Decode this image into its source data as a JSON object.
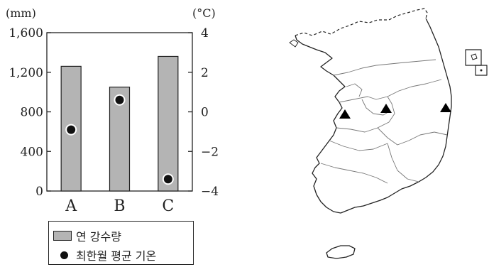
{
  "chart_data": {
    "type": "bar",
    "categories": [
      "A",
      "B",
      "C"
    ],
    "series": [
      {
        "name": "연 강수량",
        "kind": "bar",
        "axis": "left",
        "values": [
          1260,
          1050,
          1360
        ]
      },
      {
        "name": "최한월 평균 기온",
        "kind": "scatter",
        "axis": "right",
        "values": [
          -0.9,
          0.6,
          -3.4
        ]
      }
    ],
    "y_left": {
      "unit": "(mm)",
      "ylim": [
        0,
        1600
      ],
      "ticks": [
        0,
        400,
        800,
        1200,
        1600
      ],
      "tick_labels": [
        "0",
        "400",
        "800",
        "1,200",
        "1,600"
      ]
    },
    "y_right": {
      "unit": "(°C)",
      "ylim": [
        -4,
        4
      ],
      "ticks": [
        -4,
        -2,
        0,
        2,
        4
      ],
      "tick_labels": [
        "−4",
        "−2",
        "0",
        "2",
        "4"
      ]
    },
    "legend_position": "bottom",
    "bar_color": "#b4b4b4",
    "dot_color": "#111111"
  },
  "map": {
    "region": "South Korea",
    "markers": [
      {
        "symbol": "triangle",
        "location": "west coast"
      },
      {
        "symbol": "triangle",
        "location": "central inland"
      },
      {
        "symbol": "triangle",
        "location": "east coast"
      }
    ]
  }
}
